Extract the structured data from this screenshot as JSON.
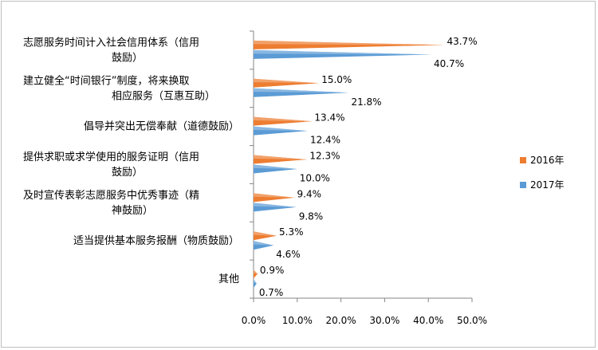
{
  "chart_data": {
    "type": "bar",
    "orientation": "horizontal",
    "categories": [
      [
        "志愿服务时间计入社会信用体系（信用",
        "鼓励）"
      ],
      [
        "建立健全“时间银行”制度，将来换取",
        "相应服务（互惠互助）"
      ],
      [
        "倡导并突出无偿奉献（道德鼓励）"
      ],
      [
        "提供求职或求学使用的服务证明（信用",
        "鼓励）"
      ],
      [
        "及时宣传表彰志愿服务中优秀事迹（精",
        "神鼓励）"
      ],
      [
        "适当提供基本服务报酬（物质鼓励）"
      ],
      [
        "其他"
      ]
    ],
    "series": [
      {
        "name": "2016年",
        "color": "#ed7d31",
        "values": [
          43.7,
          15.0,
          13.4,
          12.3,
          9.4,
          5.3,
          0.9
        ],
        "labels": [
          "43.7%",
          "15.0%",
          "13.4%",
          "12.3%",
          "9.4%",
          "5.3%",
          "0.9%"
        ]
      },
      {
        "name": "2017年",
        "color": "#5b9bd5",
        "values": [
          40.7,
          21.8,
          12.4,
          10.0,
          9.8,
          4.6,
          0.7
        ],
        "labels": [
          "40.7%",
          "21.8%",
          "12.4%",
          "10.0%",
          "9.8%",
          "4.6%",
          "0.7%"
        ]
      }
    ],
    "xlim": [
      0,
      50
    ],
    "x_ticks": [
      "0.0%",
      "10.0%",
      "20.0%",
      "30.0%",
      "40.0%",
      "50.0%"
    ],
    "grid": false,
    "legend_position": "right"
  }
}
